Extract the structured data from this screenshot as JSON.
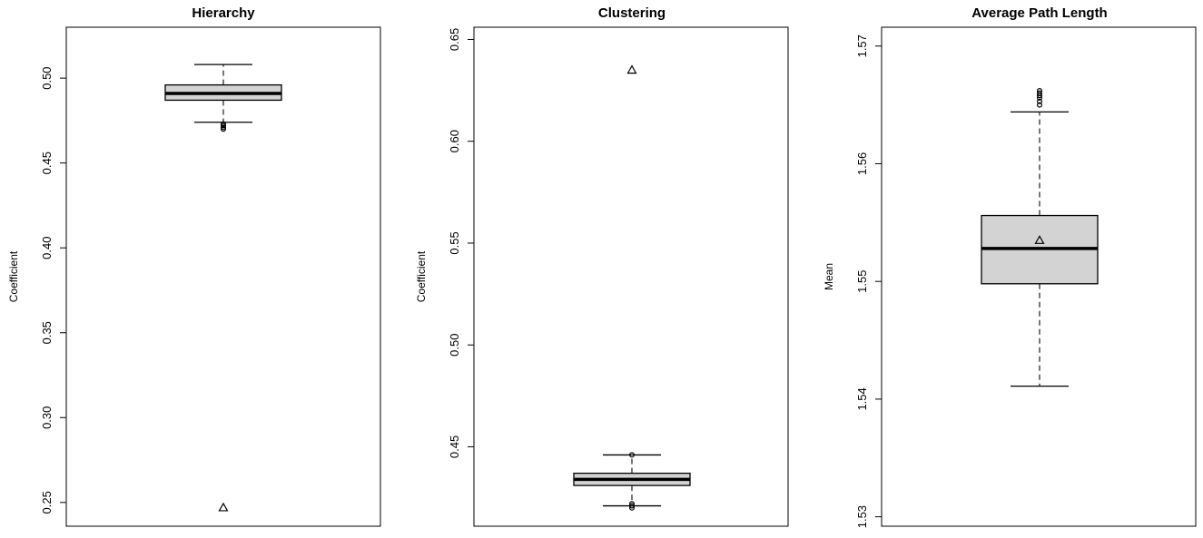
{
  "chart_data": [
    {
      "type": "boxplot",
      "title": "Hierarchy",
      "ylabel": "Coefficient",
      "ylim": [
        0.236,
        0.53
      ],
      "yticks": [
        0.25,
        0.3,
        0.35,
        0.4,
        0.45,
        0.5
      ],
      "ytick_labels": [
        "0.25",
        "0.30",
        "0.35",
        "0.40",
        "0.45",
        "0.50"
      ],
      "box": {
        "whisker_low": 0.474,
        "q1": 0.487,
        "median": 0.491,
        "q3": 0.496,
        "whisker_high": 0.508,
        "outliers": [
          0.47,
          0.471,
          0.472,
          0.473
        ],
        "reference": 0.247
      }
    },
    {
      "type": "boxplot",
      "title": "Clustering",
      "ylabel": "Coefficient",
      "ylim": [
        0.411,
        0.656
      ],
      "yticks": [
        0.45,
        0.5,
        0.55,
        0.6,
        0.65
      ],
      "ytick_labels": [
        "0.45",
        "0.50",
        "0.55",
        "0.60",
        "0.65"
      ],
      "box": {
        "whisker_low": 0.421,
        "q1": 0.431,
        "median": 0.434,
        "q3": 0.437,
        "whisker_high": 0.446,
        "outliers": [
          0.42,
          0.421,
          0.422,
          0.446
        ],
        "reference": 0.635
      }
    },
    {
      "type": "boxplot",
      "title": "Average Path Length",
      "ylabel": "Mean",
      "ylim": [
        1.5292,
        1.5716
      ],
      "yticks": [
        1.53,
        1.54,
        1.55,
        1.56,
        1.57
      ],
      "ytick_labels": [
        "1.53",
        "1.54",
        "1.55",
        "1.56",
        "1.57"
      ],
      "box": {
        "whisker_low": 1.5411,
        "q1": 1.5498,
        "median": 1.5528,
        "q3": 1.5556,
        "whisker_high": 1.5644,
        "outliers": [
          1.565,
          1.5653,
          1.5656,
          1.5658,
          1.566,
          1.5662
        ],
        "reference": 1.5535
      }
    }
  ]
}
